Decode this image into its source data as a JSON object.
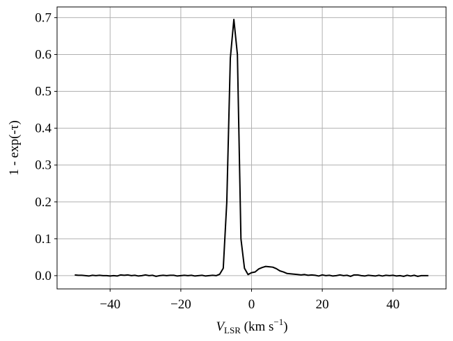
{
  "chart_data": {
    "type": "line",
    "xlabel": [
      "V",
      "LSR",
      " (km s",
      "−1",
      ")"
    ],
    "ylabel": "1 - exp(-τ)",
    "x": [
      -50,
      -49,
      -48,
      -47,
      -46,
      -45,
      -44,
      -43,
      -42,
      -41,
      -40,
      -39,
      -38,
      -37,
      -36,
      -35,
      -34,
      -33,
      -32,
      -31,
      -30,
      -29,
      -28,
      -27,
      -26,
      -25,
      -24,
      -23,
      -22,
      -21,
      -20,
      -19,
      -18,
      -17,
      -16,
      -15,
      -14,
      -13,
      -12,
      -11,
      -10,
      -9,
      -8,
      -7,
      -6,
      -5,
      -4,
      -3,
      -2,
      -1,
      0,
      1,
      2,
      3,
      4,
      5,
      6,
      7,
      8,
      9,
      10,
      11,
      12,
      13,
      14,
      15,
      16,
      17,
      18,
      19,
      20,
      21,
      22,
      23,
      24,
      25,
      26,
      27,
      28,
      29,
      30,
      31,
      32,
      33,
      34,
      35,
      36,
      37,
      38,
      39,
      40,
      41,
      42,
      43,
      44,
      45,
      46,
      47,
      48,
      49,
      50
    ],
    "series": [
      {
        "color": "#000000",
        "values": [
          0.002,
          0.001,
          0.001,
          0.0,
          -0.001,
          0.001,
          0.0,
          0.001,
          0.0,
          0.0,
          -0.001,
          0.0,
          -0.001,
          0.002,
          0.001,
          0.002,
          0.0,
          0.001,
          -0.001,
          0.0,
          0.002,
          0.0,
          0.001,
          -0.002,
          0.0,
          0.001,
          0.0,
          0.001,
          0.001,
          -0.001,
          0.0,
          0.001,
          0.0,
          0.001,
          -0.001,
          0.0,
          0.001,
          -0.001,
          0.0,
          0.001,
          0.0,
          0.004,
          0.02,
          0.2,
          0.59,
          0.695,
          0.6,
          0.1,
          0.02,
          0.003,
          0.008,
          0.01,
          0.018,
          0.022,
          0.025,
          0.024,
          0.023,
          0.019,
          0.013,
          0.01,
          0.006,
          0.005,
          0.004,
          0.003,
          0.002,
          0.003,
          0.001,
          0.002,
          0.001,
          -0.001,
          0.002,
          0.0,
          0.001,
          -0.001,
          0.0,
          0.002,
          0.0,
          0.001,
          -0.002,
          0.002,
          0.002,
          0.0,
          -0.001,
          0.001,
          0.0,
          -0.001,
          0.001,
          -0.001,
          0.001,
          0.0,
          0.001,
          -0.001,
          0.0,
          -0.002,
          0.001,
          -0.001,
          0.001,
          -0.002,
          0.0,
          0.0,
          0.0
        ]
      }
    ],
    "xlim": [
      -55,
      55
    ],
    "ylim": [
      -0.036,
      0.729
    ],
    "xticks": [
      {
        "value": -40,
        "label": "−40"
      },
      {
        "value": -20,
        "label": "−20"
      },
      0,
      20,
      40
    ],
    "yticks": [
      {
        "value": 0,
        "label": "0.0"
      },
      0.1,
      0.2,
      0.3,
      0.4,
      0.5,
      0.6,
      0.7
    ],
    "grid": true
  }
}
